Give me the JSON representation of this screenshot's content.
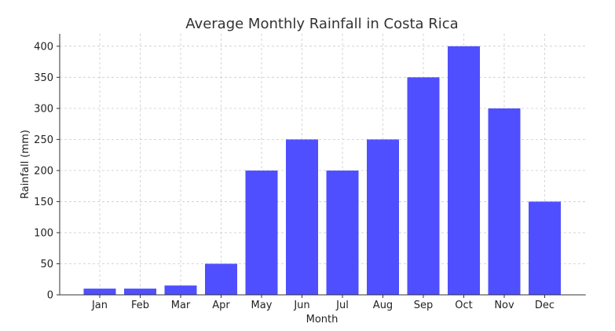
{
  "chart_data": {
    "type": "bar",
    "title": "Average Monthly Rainfall in Costa Rica",
    "xlabel": "Month",
    "ylabel": "Rainfall (mm)",
    "categories": [
      "Jan",
      "Feb",
      "Mar",
      "Apr",
      "May",
      "Jun",
      "Jul",
      "Aug",
      "Sep",
      "Oct",
      "Nov",
      "Dec"
    ],
    "values": [
      10,
      10,
      15,
      50,
      200,
      250,
      200,
      250,
      350,
      400,
      300,
      150
    ],
    "ylim": [
      0,
      420
    ],
    "yticks": [
      "0",
      "50",
      "100",
      "150",
      "200",
      "250",
      "300",
      "350",
      "400"
    ],
    "bar_color": "#4f4fff",
    "grid": true
  }
}
